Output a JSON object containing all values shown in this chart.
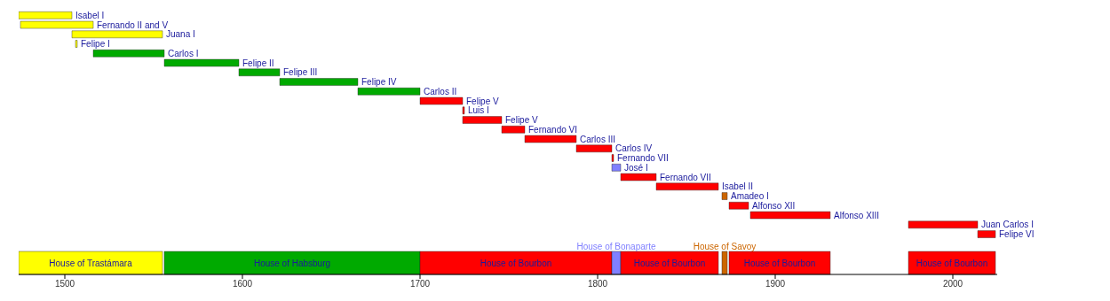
{
  "chart_data": [
    {
      "type": "bar",
      "orientation": "horizontal",
      "tick_labels": false,
      "categories": [
        "Isabel I",
        "Fernando II and V",
        "Juana I",
        "Felipe I",
        "Carlos I",
        "Felipe II",
        "Felipe III",
        "Felipe IV",
        "Carlos II",
        "Felipe V",
        "Luis I",
        "Felipe V",
        "Fernando VI",
        "Carlos III",
        "Carlos IV",
        "Fernando VII",
        "José I",
        "Fernando VII",
        "Isabel II",
        "Amadeo I",
        "Alfonso XII",
        "Alfonso XIII",
        "Juan Carlos I",
        "Felipe VI"
      ],
      "base": [
        1474,
        1475,
        1504,
        1506,
        1516,
        1556,
        1598,
        1621,
        1665,
        1700,
        1724,
        1724,
        1746,
        1759,
        1788,
        1808,
        1808,
        1813,
        1833,
        1870,
        1874,
        1886,
        1975,
        2014
      ],
      "values": [
        30,
        41,
        51,
        1,
        40,
        42,
        23,
        44,
        35,
        24,
        1,
        22,
        13,
        29,
        20,
        1,
        5,
        20,
        35,
        3,
        11,
        45,
        39,
        10
      ],
      "colors": [
        "#ffff00",
        "#ffff00",
        "#ffff00",
        "#ffff00",
        "#00aa00",
        "#00aa00",
        "#00aa00",
        "#00aa00",
        "#00aa00",
        "#ff0000",
        "#ff0000",
        "#ff0000",
        "#ff0000",
        "#ff0000",
        "#ff0000",
        "#ff0000",
        "#8080ff",
        "#ff0000",
        "#ff0000",
        "#cc6600",
        "#ff0000",
        "#ff0000",
        "#ff0000",
        "#ff0000"
      ],
      "xlim": [
        1474,
        2025
      ]
    },
    {
      "type": "bar",
      "orientation": "horizontal",
      "tick_labels": "x",
      "categories": [
        null
      ],
      "series": [
        {
          "name": "House of Trastámara",
          "color": "#ffff00",
          "base": [
            1474
          ],
          "values": [
            81
          ]
        },
        {
          "name": "House of Habsburg",
          "color": "#00aa00",
          "base": [
            1556
          ],
          "values": [
            144
          ]
        },
        {
          "name": "House of Bourbon",
          "color": "#ff0000",
          "base": [
            1700
          ],
          "values": [
            108
          ]
        },
        {
          "name": "House of Bonaparte",
          "color": "#8080ff",
          "base": [
            1808
          ],
          "values": [
            5
          ]
        },
        {
          "name": "House of Bourbon",
          "color": "#ff0000",
          "base": [
            1813
          ],
          "values": [
            55
          ]
        },
        {
          "name": "House of Savoy",
          "color": "#cc6600",
          "base": [
            1870
          ],
          "values": [
            3
          ]
        },
        {
          "name": "House of Bourbon",
          "color": "#ff0000",
          "base": [
            1874
          ],
          "values": [
            57
          ]
        },
        {
          "name": "House of Bourbon",
          "color": "#ff0000",
          "base": [
            1975
          ],
          "values": [
            49
          ]
        }
      ],
      "xlim": [
        1474,
        2025
      ],
      "xticks": [
        1500,
        1600,
        1700,
        1800,
        1900,
        2000
      ]
    }
  ]
}
